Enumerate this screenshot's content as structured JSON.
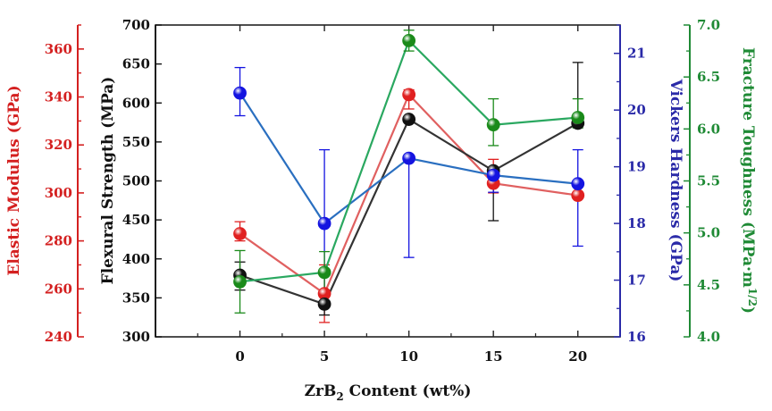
{
  "chart_data": {
    "type": "line",
    "x": [
      0,
      5,
      10,
      15,
      20
    ],
    "xlabel": {
      "main": "ZrB",
      "sub": "2",
      "rest": " Content (wt%)"
    },
    "xlim": [
      -5,
      22.5
    ],
    "xticks": [
      0,
      5,
      10,
      15,
      20
    ],
    "grid": false,
    "axes": {
      "elastic": {
        "label": "Elastic Modulus (GPa)",
        "lim": [
          240,
          370
        ],
        "ticks": [
          240,
          260,
          280,
          300,
          320,
          340,
          360
        ],
        "color": "#d42020"
      },
      "flexural": {
        "label": "Flexural Strength (MPa)",
        "lim": [
          300,
          700
        ],
        "ticks": [
          300,
          350,
          400,
          450,
          500,
          550,
          600,
          650,
          700
        ],
        "color": "#111111"
      },
      "vickers": {
        "label": "Vickers Hardness (GPa)",
        "lim": [
          16,
          21.5
        ],
        "ticks": [
          16,
          17,
          18,
          19,
          20,
          21
        ],
        "color": "#2a2aa8"
      },
      "fracture": {
        "label": {
          "main": "Fracture Toughness (MPa·m",
          "sup": "1/2",
          "rest": ")"
        },
        "lim": [
          4.0,
          7.0
        ],
        "ticks": [
          "4.0",
          "4.5",
          "5.0",
          "5.5",
          "6.0",
          "6.5",
          "7.0"
        ],
        "color": "#1f8a35"
      }
    },
    "series": [
      {
        "axis": "elastic",
        "color": "#e02020",
        "line": "#e06060",
        "values": [
          283,
          258,
          341,
          304,
          299
        ],
        "err_low": [
          3,
          12,
          6,
          4,
          0
        ],
        "err_high": [
          5,
          12,
          2,
          10,
          0
        ]
      },
      {
        "axis": "flexural",
        "color": "#111111",
        "line": "#333333",
        "values": [
          379,
          342,
          579,
          513,
          574
        ],
        "err_low": [
          19,
          14,
          0,
          64,
          0
        ],
        "err_high": [
          17,
          14,
          0,
          0,
          78
        ]
      },
      {
        "axis": "vickers",
        "color": "#1414e0",
        "line": "#2a6fc0",
        "values": [
          20.3,
          18.0,
          19.15,
          18.85,
          18.7
        ],
        "err_low": [
          0.4,
          1.2,
          1.75,
          0.3,
          1.1
        ],
        "err_high": [
          0.45,
          1.3,
          0,
          0,
          0.6
        ]
      },
      {
        "axis": "fracture",
        "color": "#1a8a1a",
        "line": "#2aa860",
        "values": [
          4.53,
          4.62,
          6.85,
          6.04,
          6.11
        ],
        "err_low": [
          0.3,
          0.2,
          0.1,
          0.2,
          0.1
        ],
        "err_high": [
          0.3,
          0.2,
          0.1,
          0.25,
          0.18
        ]
      }
    ]
  }
}
